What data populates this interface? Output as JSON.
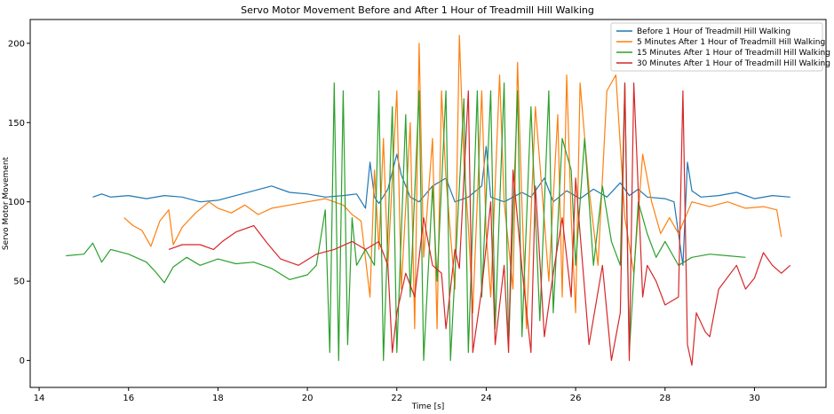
{
  "chart_data": {
    "type": "line",
    "title": "Servo Motor Movement Before and After 1 Hour of Treadmill Hill Walking",
    "xlabel": "Time [s]",
    "ylabel": "Servo Motor Movement",
    "xlim": [
      13.8,
      31.6
    ],
    "ylim": [
      -17,
      215
    ],
    "xticks": [
      14,
      16,
      18,
      20,
      22,
      24,
      26,
      28,
      30
    ],
    "yticks": [
      0,
      50,
      100,
      150,
      200
    ],
    "grid": false,
    "legend_position": "top-right",
    "series": [
      {
        "name": "Before 1 Hour of Treadmill Hill Walking",
        "color": "#1f77b4",
        "points": [
          [
            15.2,
            103
          ],
          [
            15.4,
            105
          ],
          [
            15.6,
            103
          ],
          [
            16.0,
            104
          ],
          [
            16.4,
            102
          ],
          [
            16.8,
            104
          ],
          [
            17.2,
            103
          ],
          [
            17.6,
            100
          ],
          [
            18.0,
            101
          ],
          [
            18.4,
            104
          ],
          [
            18.8,
            107
          ],
          [
            19.2,
            110
          ],
          [
            19.6,
            106
          ],
          [
            20.0,
            105
          ],
          [
            20.4,
            103
          ],
          [
            20.8,
            104
          ],
          [
            21.1,
            105
          ],
          [
            21.3,
            96
          ],
          [
            21.4,
            125
          ],
          [
            21.5,
            103
          ],
          [
            21.6,
            99
          ],
          [
            21.8,
            108
          ],
          [
            22.0,
            130
          ],
          [
            22.1,
            117
          ],
          [
            22.3,
            103
          ],
          [
            22.5,
            100
          ],
          [
            22.8,
            110
          ],
          [
            23.1,
            115
          ],
          [
            23.3,
            100
          ],
          [
            23.6,
            103
          ],
          [
            23.9,
            110
          ],
          [
            24.0,
            135
          ],
          [
            24.1,
            103
          ],
          [
            24.4,
            100
          ],
          [
            24.8,
            106
          ],
          [
            25.0,
            103
          ],
          [
            25.3,
            115
          ],
          [
            25.5,
            100
          ],
          [
            25.8,
            107
          ],
          [
            26.1,
            102
          ],
          [
            26.4,
            108
          ],
          [
            26.7,
            103
          ],
          [
            27.0,
            112
          ],
          [
            27.2,
            104
          ],
          [
            27.4,
            108
          ],
          [
            27.6,
            103
          ],
          [
            28.0,
            102
          ],
          [
            28.2,
            100
          ],
          [
            28.4,
            60
          ],
          [
            28.5,
            125
          ],
          [
            28.6,
            107
          ],
          [
            28.8,
            103
          ],
          [
            29.2,
            104
          ],
          [
            29.6,
            106
          ],
          [
            30.0,
            102
          ],
          [
            30.4,
            104
          ],
          [
            30.8,
            103
          ]
        ]
      },
      {
        "name": "5 Minutes After 1 Hour of Treadmill Hill Walking",
        "color": "#ff7f0e",
        "points": [
          [
            15.9,
            90
          ],
          [
            16.1,
            85
          ],
          [
            16.3,
            82
          ],
          [
            16.5,
            72
          ],
          [
            16.7,
            88
          ],
          [
            16.9,
            95
          ],
          [
            17.0,
            73
          ],
          [
            17.2,
            84
          ],
          [
            17.5,
            93
          ],
          [
            17.8,
            100
          ],
          [
            18.0,
            96
          ],
          [
            18.3,
            93
          ],
          [
            18.6,
            98
          ],
          [
            18.9,
            92
          ],
          [
            19.2,
            96
          ],
          [
            19.6,
            98
          ],
          [
            20.0,
            100
          ],
          [
            20.4,
            102
          ],
          [
            20.8,
            98
          ],
          [
            21.0,
            92
          ],
          [
            21.2,
            88
          ],
          [
            21.4,
            40
          ],
          [
            21.5,
            120
          ],
          [
            21.6,
            70
          ],
          [
            21.7,
            140
          ],
          [
            21.8,
            60
          ],
          [
            22.0,
            170
          ],
          [
            22.1,
            45
          ],
          [
            22.3,
            150
          ],
          [
            22.4,
            20
          ],
          [
            22.5,
            200
          ],
          [
            22.6,
            65
          ],
          [
            22.8,
            140
          ],
          [
            22.9,
            20
          ],
          [
            23.0,
            170
          ],
          [
            23.1,
            115
          ],
          [
            23.3,
            45
          ],
          [
            23.4,
            205
          ],
          [
            23.5,
            125
          ],
          [
            23.6,
            85
          ],
          [
            23.7,
            30
          ],
          [
            23.9,
            170
          ],
          [
            24.0,
            80
          ],
          [
            24.1,
            40
          ],
          [
            24.3,
            180
          ],
          [
            24.4,
            100
          ],
          [
            24.6,
            45
          ],
          [
            24.7,
            188
          ],
          [
            24.8,
            98
          ],
          [
            24.9,
            20
          ],
          [
            25.1,
            160
          ],
          [
            25.3,
            88
          ],
          [
            25.4,
            50
          ],
          [
            25.6,
            155
          ],
          [
            25.7,
            40
          ],
          [
            25.8,
            180
          ],
          [
            25.9,
            90
          ],
          [
            26.0,
            30
          ],
          [
            26.1,
            175
          ],
          [
            26.3,
            108
          ],
          [
            26.5,
            60
          ],
          [
            26.7,
            170
          ],
          [
            26.9,
            180
          ],
          [
            27.1,
            90
          ],
          [
            27.3,
            55
          ],
          [
            27.5,
            130
          ],
          [
            27.7,
            100
          ],
          [
            27.9,
            80
          ],
          [
            28.1,
            90
          ],
          [
            28.3,
            80
          ],
          [
            28.6,
            100
          ],
          [
            29.0,
            97
          ],
          [
            29.4,
            100
          ],
          [
            29.8,
            96
          ],
          [
            30.2,
            97
          ],
          [
            30.5,
            95
          ],
          [
            30.6,
            78
          ]
        ]
      },
      {
        "name": "15 Minutes After 1 Hour of Treadmill Hill Walking",
        "color": "#2ca02c",
        "points": [
          [
            14.6,
            66
          ],
          [
            15.0,
            67
          ],
          [
            15.2,
            74
          ],
          [
            15.4,
            62
          ],
          [
            15.6,
            70
          ],
          [
            16.0,
            67
          ],
          [
            16.4,
            62
          ],
          [
            16.6,
            56
          ],
          [
            16.8,
            49
          ],
          [
            17.0,
            59
          ],
          [
            17.3,
            65
          ],
          [
            17.6,
            60
          ],
          [
            18.0,
            64
          ],
          [
            18.4,
            61
          ],
          [
            18.8,
            62
          ],
          [
            19.2,
            58
          ],
          [
            19.6,
            51
          ],
          [
            20.0,
            54
          ],
          [
            20.2,
            60
          ],
          [
            20.4,
            95
          ],
          [
            20.5,
            5
          ],
          [
            20.6,
            175
          ],
          [
            20.7,
            0
          ],
          [
            20.8,
            170
          ],
          [
            20.9,
            10
          ],
          [
            21.0,
            90
          ],
          [
            21.1,
            60
          ],
          [
            21.3,
            70
          ],
          [
            21.5,
            60
          ],
          [
            21.6,
            170
          ],
          [
            21.7,
            0
          ],
          [
            21.9,
            160
          ],
          [
            22.0,
            5
          ],
          [
            22.2,
            155
          ],
          [
            22.3,
            40
          ],
          [
            22.5,
            170
          ],
          [
            22.6,
            0
          ],
          [
            22.8,
            110
          ],
          [
            22.9,
            50
          ],
          [
            23.1,
            170
          ],
          [
            23.2,
            0
          ],
          [
            23.5,
            165
          ],
          [
            23.6,
            5
          ],
          [
            23.8,
            170
          ],
          [
            23.9,
            40
          ],
          [
            24.1,
            170
          ],
          [
            24.2,
            20
          ],
          [
            24.4,
            175
          ],
          [
            24.5,
            10
          ],
          [
            24.7,
            170
          ],
          [
            24.8,
            15
          ],
          [
            25.0,
            160
          ],
          [
            25.2,
            25
          ],
          [
            25.4,
            170
          ],
          [
            25.5,
            30
          ],
          [
            25.7,
            140
          ],
          [
            25.9,
            120
          ],
          [
            26.0,
            60
          ],
          [
            26.2,
            140
          ],
          [
            26.4,
            60
          ],
          [
            26.6,
            110
          ],
          [
            26.8,
            75
          ],
          [
            27.0,
            60
          ],
          [
            27.1,
            175
          ],
          [
            27.2,
            5
          ],
          [
            27.4,
            100
          ],
          [
            27.6,
            80
          ],
          [
            27.8,
            65
          ],
          [
            28.0,
            75
          ],
          [
            28.3,
            60
          ],
          [
            28.6,
            65
          ],
          [
            29.0,
            67
          ],
          [
            29.4,
            66
          ],
          [
            29.8,
            65
          ]
        ]
      },
      {
        "name": "30 Minutes After 1 Hour of Treadmill Hill Walking",
        "color": "#d62728",
        "points": [
          [
            16.9,
            70
          ],
          [
            17.2,
            73
          ],
          [
            17.6,
            73
          ],
          [
            17.9,
            70
          ],
          [
            18.1,
            75
          ],
          [
            18.4,
            81
          ],
          [
            18.8,
            85
          ],
          [
            19.1,
            74
          ],
          [
            19.4,
            64
          ],
          [
            19.8,
            60
          ],
          [
            20.2,
            67
          ],
          [
            20.6,
            70
          ],
          [
            21.0,
            75
          ],
          [
            21.3,
            70
          ],
          [
            21.6,
            75
          ],
          [
            21.8,
            60
          ],
          [
            21.9,
            5
          ],
          [
            22.0,
            30
          ],
          [
            22.2,
            55
          ],
          [
            22.4,
            40
          ],
          [
            22.6,
            90
          ],
          [
            22.8,
            60
          ],
          [
            23.0,
            55
          ],
          [
            23.1,
            20
          ],
          [
            23.3,
            70
          ],
          [
            23.4,
            58
          ],
          [
            23.6,
            170
          ],
          [
            23.7,
            5
          ],
          [
            23.9,
            45
          ],
          [
            24.1,
            100
          ],
          [
            24.2,
            10
          ],
          [
            24.4,
            60
          ],
          [
            24.5,
            5
          ],
          [
            24.6,
            120
          ],
          [
            24.8,
            58
          ],
          [
            25.0,
            5
          ],
          [
            25.1,
            110
          ],
          [
            25.3,
            15
          ],
          [
            25.5,
            55
          ],
          [
            25.7,
            90
          ],
          [
            25.9,
            40
          ],
          [
            26.0,
            115
          ],
          [
            26.2,
            45
          ],
          [
            26.3,
            10
          ],
          [
            26.6,
            60
          ],
          [
            26.8,
            0
          ],
          [
            27.0,
            30
          ],
          [
            27.1,
            175
          ],
          [
            27.2,
            0
          ],
          [
            27.3,
            175
          ],
          [
            27.5,
            40
          ],
          [
            27.6,
            60
          ],
          [
            27.8,
            50
          ],
          [
            28.0,
            35
          ],
          [
            28.3,
            40
          ],
          [
            28.4,
            170
          ],
          [
            28.5,
            10
          ],
          [
            28.6,
            -3
          ],
          [
            28.7,
            30
          ],
          [
            28.9,
            18
          ],
          [
            29.0,
            15
          ],
          [
            29.2,
            45
          ],
          [
            29.6,
            60
          ],
          [
            29.8,
            45
          ],
          [
            30.0,
            52
          ],
          [
            30.2,
            68
          ],
          [
            30.4,
            60
          ],
          [
            30.6,
            55
          ],
          [
            30.8,
            60
          ]
        ]
      }
    ]
  }
}
